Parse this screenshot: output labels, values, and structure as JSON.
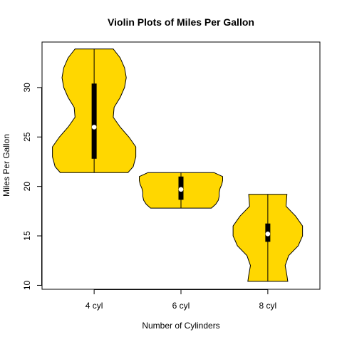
{
  "chart_data": {
    "type": "violin",
    "title": "Violin Plots of Miles Per Gallon",
    "xlabel": "Number of Cylinders",
    "ylabel": "Miles Per Gallon",
    "ylim": [
      9.6,
      34.6
    ],
    "yticks": [
      10,
      15,
      20,
      25,
      30
    ],
    "categories": [
      "4 cyl",
      "6 cyl",
      "8 cyl"
    ],
    "fill_color": "#FFD700",
    "series": [
      {
        "min": 21.4,
        "q1": 22.8,
        "median": 26.0,
        "q3": 30.4,
        "max": 33.9,
        "density": [
          [
            21.4,
            0.39
          ],
          [
            22.0,
            0.45
          ],
          [
            23.0,
            0.48
          ],
          [
            24.0,
            0.48
          ],
          [
            25.0,
            0.4
          ],
          [
            26.0,
            0.3
          ],
          [
            27.0,
            0.22
          ],
          [
            28.0,
            0.23
          ],
          [
            29.0,
            0.3
          ],
          [
            30.0,
            0.35
          ],
          [
            31.0,
            0.37
          ],
          [
            32.0,
            0.35
          ],
          [
            33.0,
            0.3
          ],
          [
            33.9,
            0.22
          ]
        ]
      },
      {
        "min": 17.8,
        "q1": 18.65,
        "median": 19.7,
        "q3": 21.0,
        "max": 21.4,
        "density": [
          [
            17.8,
            0.35
          ],
          [
            18.2,
            0.4
          ],
          [
            18.6,
            0.43
          ],
          [
            19.0,
            0.44
          ],
          [
            19.4,
            0.44
          ],
          [
            19.8,
            0.45
          ],
          [
            20.2,
            0.47
          ],
          [
            20.6,
            0.48
          ],
          [
            21.0,
            0.48
          ],
          [
            21.4,
            0.38
          ]
        ]
      },
      {
        "min": 10.4,
        "q1": 14.4,
        "median": 15.2,
        "q3": 16.25,
        "max": 19.2,
        "density": [
          [
            10.4,
            0.23
          ],
          [
            11.0,
            0.22
          ],
          [
            12.0,
            0.2
          ],
          [
            13.0,
            0.24
          ],
          [
            14.0,
            0.35
          ],
          [
            15.0,
            0.4
          ],
          [
            16.0,
            0.4
          ],
          [
            17.0,
            0.32
          ],
          [
            18.0,
            0.21
          ],
          [
            19.2,
            0.22
          ]
        ]
      }
    ]
  }
}
